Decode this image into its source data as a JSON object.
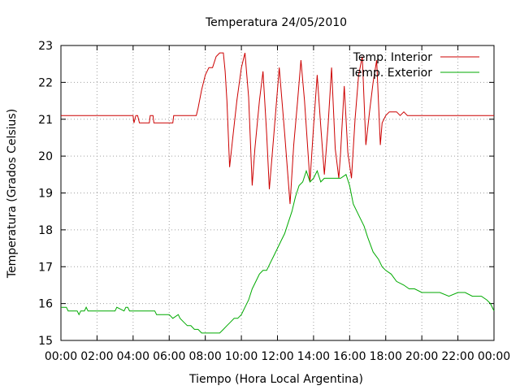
{
  "chart_data": {
    "type": "line",
    "title": "Temperatura 24/05/2010",
    "xlabel": "Tiempo (Hora Local Argentina)",
    "ylabel": "Temperatura (Grados Celsius)",
    "xlim": [
      0,
      24
    ],
    "ylim": [
      15,
      23
    ],
    "xticks": [
      "00:00",
      "02:00",
      "04:00",
      "06:00",
      "08:00",
      "10:00",
      "12:00",
      "14:00",
      "16:00",
      "18:00",
      "20:00",
      "22:00",
      "00:00"
    ],
    "yticks": [
      "15",
      "16",
      "17",
      "18",
      "19",
      "20",
      "21",
      "22",
      "23"
    ],
    "grid": true,
    "legend_position": "top-right",
    "series": [
      {
        "name": "Temp. Interior",
        "color": "#cc0000",
        "x": [
          0.0,
          4.0,
          4.05,
          4.15,
          4.25,
          4.35,
          4.4,
          4.9,
          4.95,
          5.1,
          5.15,
          5.2,
          5.3,
          6.2,
          6.25,
          7.5,
          7.6,
          7.8,
          8.0,
          8.2,
          8.4,
          8.6,
          8.8,
          9.0,
          9.1,
          9.2,
          9.35,
          9.5,
          9.75,
          10.0,
          10.2,
          10.4,
          10.6,
          10.75,
          11.0,
          11.2,
          11.4,
          11.55,
          11.8,
          12.1,
          12.4,
          12.7,
          12.9,
          13.1,
          13.3,
          13.5,
          13.8,
          14.0,
          14.2,
          14.4,
          14.6,
          14.8,
          15.0,
          15.2,
          15.4,
          15.5,
          15.7,
          15.9,
          16.1,
          16.3,
          16.5,
          16.7,
          16.9,
          17.1,
          17.3,
          17.5,
          17.7,
          17.8,
          18.0,
          18.2,
          18.4,
          18.6,
          18.8,
          19.0,
          19.2,
          19.4,
          19.6,
          19.8,
          20.0,
          20.4,
          20.6,
          20.7,
          20.8,
          21.0,
          24.0
        ],
        "values": [
          21.1,
          21.1,
          20.9,
          21.1,
          21.1,
          20.9,
          20.9,
          20.9,
          21.1,
          21.1,
          20.9,
          20.9,
          20.9,
          20.9,
          21.1,
          21.1,
          21.3,
          21.8,
          22.2,
          22.4,
          22.4,
          22.7,
          22.8,
          22.8,
          22.3,
          21.5,
          19.7,
          20.4,
          21.5,
          22.4,
          22.8,
          21.6,
          19.2,
          20.2,
          21.5,
          22.3,
          20.6,
          19.1,
          20.6,
          22.4,
          20.6,
          18.7,
          20.3,
          21.4,
          22.6,
          21.5,
          19.3,
          20.8,
          22.2,
          20.8,
          19.5,
          20.8,
          22.4,
          20.2,
          19.4,
          20.1,
          21.9,
          20.1,
          19.4,
          21.0,
          22.2,
          22.7,
          20.3,
          21.2,
          22.0,
          22.6,
          20.3,
          20.9,
          21.1,
          21.2,
          21.2,
          21.2,
          21.1,
          21.2,
          21.1,
          21.1,
          21.1,
          21.1,
          21.1,
          21.1,
          21.1,
          21.1,
          21.1,
          21.1,
          21.1
        ]
      },
      {
        "name": "Temp. Exterior",
        "color": "#00aa00",
        "x": [
          0.0,
          0.3,
          0.4,
          0.9,
          1.0,
          1.1,
          1.3,
          1.4,
          1.5,
          3.0,
          3.1,
          3.5,
          3.6,
          3.7,
          3.8,
          3.9,
          4.0,
          5.2,
          5.3,
          6.0,
          6.2,
          6.5,
          6.6,
          6.8,
          7.0,
          7.2,
          7.4,
          7.6,
          7.8,
          8.0,
          8.8,
          9.0,
          9.2,
          9.4,
          9.6,
          9.8,
          10.0,
          10.2,
          10.4,
          10.6,
          10.8,
          11.0,
          11.2,
          11.4,
          11.6,
          11.8,
          12.0,
          12.2,
          12.4,
          12.6,
          12.8,
          13.0,
          13.2,
          13.4,
          13.6,
          13.8,
          14.0,
          14.2,
          14.4,
          14.6,
          14.8,
          15.0,
          15.2,
          15.5,
          15.8,
          16.0,
          16.2,
          16.5,
          16.8,
          17.0,
          17.3,
          17.6,
          17.8,
          18.0,
          18.3,
          18.6,
          19.0,
          19.3,
          19.6,
          20.0,
          20.3,
          20.6,
          21.0,
          21.5,
          22.0,
          22.4,
          22.8,
          23.0,
          23.3,
          23.6,
          23.8,
          24.0
        ],
        "values": [
          15.9,
          15.9,
          15.8,
          15.8,
          15.7,
          15.8,
          15.8,
          15.9,
          15.8,
          15.8,
          15.9,
          15.8,
          15.9,
          15.9,
          15.8,
          15.8,
          15.8,
          15.8,
          15.7,
          15.7,
          15.6,
          15.7,
          15.6,
          15.5,
          15.4,
          15.4,
          15.3,
          15.3,
          15.2,
          15.2,
          15.2,
          15.3,
          15.4,
          15.5,
          15.6,
          15.6,
          15.7,
          15.9,
          16.1,
          16.4,
          16.6,
          16.8,
          16.9,
          16.9,
          17.1,
          17.3,
          17.5,
          17.7,
          17.9,
          18.2,
          18.5,
          18.9,
          19.2,
          19.3,
          19.6,
          19.3,
          19.4,
          19.6,
          19.3,
          19.4,
          19.4,
          19.4,
          19.4,
          19.4,
          19.5,
          19.2,
          18.7,
          18.4,
          18.1,
          17.8,
          17.4,
          17.2,
          17.0,
          16.9,
          16.8,
          16.6,
          16.5,
          16.4,
          16.4,
          16.3,
          16.3,
          16.3,
          16.3,
          16.2,
          16.3,
          16.3,
          16.2,
          16.2,
          16.2,
          16.1,
          16.0,
          15.8
        ]
      }
    ]
  }
}
